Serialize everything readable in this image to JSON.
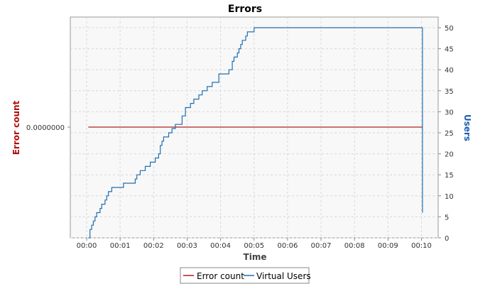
{
  "chart_data": {
    "type": "line",
    "title": "Errors",
    "xlabel": "Time",
    "ylabel_left": "Error count",
    "ylabel_right": "Users",
    "x_ticks": [
      "00:00",
      "00:01",
      "00:02",
      "00:03",
      "00:04",
      "00:05",
      "00:06",
      "00:07",
      "00:08",
      "00:09",
      "00:10"
    ],
    "xlim": [
      0,
      10.3
    ],
    "y_left_ticks": [
      "0.0000000"
    ],
    "y_right_ticks": [
      0,
      5,
      10,
      15,
      20,
      25,
      30,
      35,
      40,
      45,
      50
    ],
    "y_right_lim": [
      0,
      52
    ],
    "grid": true,
    "legend_position": "bottom",
    "colors": {
      "error_count": "#b02020",
      "virtual_users": "#1f6fb2",
      "left_axis_title": "#b01010",
      "right_axis_title": "#1f5fae"
    },
    "series": [
      {
        "name": "Error count",
        "axis": "left",
        "x": [
          0.05,
          10.03
        ],
        "y": [
          0,
          0
        ]
      },
      {
        "name": "Virtual Users",
        "axis": "right",
        "step": true,
        "x": [
          0.05,
          0.1,
          0.15,
          0.2,
          0.25,
          0.3,
          0.4,
          0.45,
          0.55,
          0.6,
          0.65,
          0.75,
          0.9,
          1.1,
          1.25,
          1.45,
          1.5,
          1.6,
          1.75,
          1.9,
          2.05,
          2.15,
          2.2,
          2.25,
          2.3,
          2.45,
          2.55,
          2.65,
          2.85,
          2.95,
          3.1,
          3.2,
          3.35,
          3.45,
          3.6,
          3.75,
          3.95,
          4.1,
          4.25,
          4.35,
          4.4,
          4.5,
          4.55,
          4.6,
          4.65,
          4.75,
          4.8,
          4.9,
          5.0,
          5.1,
          5.2,
          10.0,
          10.03
        ],
        "y": [
          0,
          2,
          3,
          4,
          5,
          6,
          7,
          8,
          9,
          10,
          11,
          12,
          12,
          13,
          13,
          14,
          15,
          16,
          17,
          18,
          19,
          20,
          22,
          23,
          24,
          25,
          26,
          27,
          29,
          31,
          32,
          33,
          34,
          35,
          36,
          37,
          39,
          39,
          40,
          42,
          43,
          44,
          45,
          46,
          47,
          48,
          49,
          49,
          50,
          50,
          50,
          50,
          6
        ]
      }
    ]
  }
}
